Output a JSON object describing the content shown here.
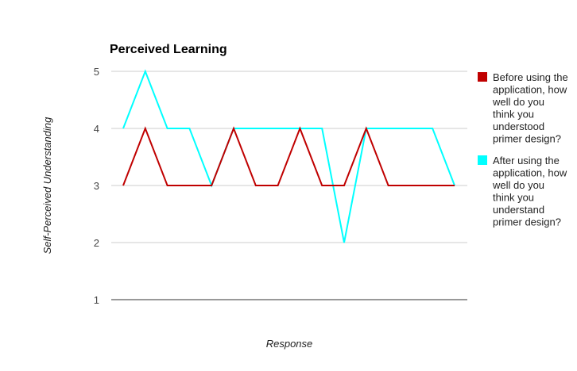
{
  "chart_data": {
    "type": "line",
    "title": "Perceived Learning",
    "xlabel": "Response",
    "ylabel": "Self-Perceived Understanding",
    "ylim": [
      1,
      5
    ],
    "yticks": [
      "1",
      "2",
      "3",
      "4",
      "5"
    ],
    "grid": true,
    "legend_position": "right",
    "x": [
      1,
      2,
      3,
      4,
      5,
      6,
      7,
      8,
      9,
      10,
      11,
      12,
      13,
      14,
      15,
      16
    ],
    "series": [
      {
        "name": "Before using the application, how well do you think you understood primer design?",
        "legend_lines": [
          "Before using the",
          "application, how",
          "well do you",
          "think you",
          "understood",
          "primer design?"
        ],
        "color": "#c00000",
        "values": [
          3,
          4,
          3,
          3,
          3,
          4,
          3,
          3,
          4,
          3,
          3,
          4,
          3,
          3,
          3,
          3
        ]
      },
      {
        "name": "After using the application, how well do you think you understand primer design?",
        "legend_lines": [
          "After using the",
          "application, how",
          "well do you",
          "think you",
          "understand",
          "primer design?"
        ],
        "color": "#00ffff",
        "values": [
          4,
          5,
          4,
          4,
          3,
          4,
          4,
          4,
          4,
          4,
          2,
          4,
          4,
          4,
          4,
          3
        ]
      }
    ]
  }
}
